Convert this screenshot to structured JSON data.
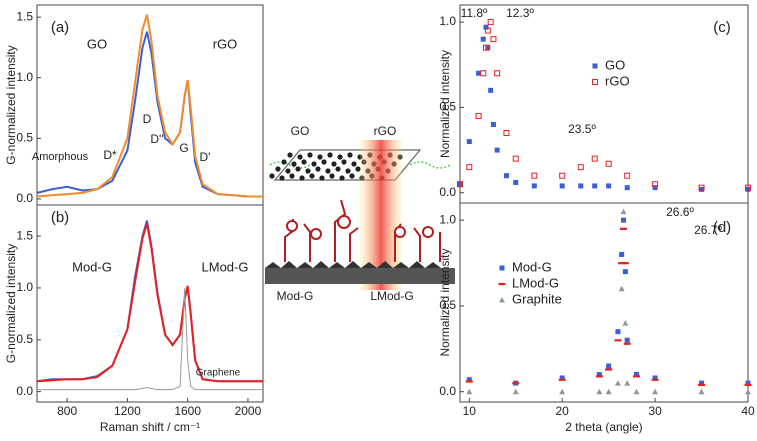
{
  "chart_data": [
    {
      "type": "line",
      "panel": "(a)",
      "x": [
        600,
        700,
        800,
        900,
        1000,
        1100,
        1200,
        1250,
        1300,
        1330,
        1360,
        1400,
        1450,
        1500,
        1550,
        1580,
        1600,
        1620,
        1650,
        1700,
        1800,
        1900,
        2000,
        2100
      ],
      "series": [
        {
          "name": "GO",
          "color": "#3a5fd6",
          "values": [
            0.05,
            0.08,
            0.1,
            0.07,
            0.08,
            0.15,
            0.4,
            0.8,
            1.25,
            1.38,
            1.2,
            0.8,
            0.5,
            0.45,
            0.55,
            0.85,
            0.98,
            0.7,
            0.3,
            0.1,
            0.04,
            0.03,
            0.02,
            0.02
          ]
        },
        {
          "name": "rGO",
          "color": "#f28c28",
          "values": [
            0.02,
            0.03,
            0.04,
            0.05,
            0.08,
            0.18,
            0.5,
            0.95,
            1.4,
            1.52,
            1.3,
            0.85,
            0.55,
            0.45,
            0.55,
            0.85,
            0.98,
            0.75,
            0.35,
            0.12,
            0.04,
            0.03,
            0.02,
            0.02
          ]
        }
      ],
      "annotations": [
        {
          "text": "D",
          "color": "#3a5fd6"
        },
        {
          "text": "D''",
          "color": "#3a5fd6"
        },
        {
          "text": "G",
          "color": "#3a5fd6"
        },
        {
          "text": "D*",
          "color": "#e8201f"
        },
        {
          "text": "D'",
          "color": "#e8201f"
        },
        {
          "text": "Amorphous",
          "color": "#e8201f"
        }
      ],
      "ylabel": "G-normalized intensity",
      "xlim": [
        600,
        2100
      ],
      "ylim": [
        -0.05,
        1.6
      ],
      "yticks": [
        {
          "value": 0,
          "label": "0.0"
        },
        {
          "value": 0.5,
          "label": "0.5"
        },
        {
          "value": 1,
          "label": "1.0"
        },
        {
          "value": 1.5,
          "label": "1.5"
        }
      ]
    },
    {
      "type": "line",
      "panel": "(b)",
      "x": [
        600,
        700,
        800,
        900,
        1000,
        1100,
        1200,
        1250,
        1300,
        1330,
        1360,
        1400,
        1450,
        1500,
        1550,
        1580,
        1600,
        1620,
        1650,
        1700,
        1800,
        1900,
        2000,
        2100
      ],
      "series": [
        {
          "name": "Mod-G",
          "color": "#3a5fd6",
          "values": [
            0.1,
            0.12,
            0.12,
            0.12,
            0.15,
            0.25,
            0.6,
            1.1,
            1.5,
            1.65,
            1.4,
            0.95,
            0.55,
            0.45,
            0.55,
            0.9,
            1.0,
            0.75,
            0.3,
            0.12,
            0.1,
            0.1,
            0.1,
            0.1
          ]
        },
        {
          "name": "LMod-G",
          "color": "#e8201f",
          "values": [
            0.1,
            0.11,
            0.12,
            0.12,
            0.14,
            0.25,
            0.6,
            1.05,
            1.48,
            1.62,
            1.38,
            0.93,
            0.55,
            0.45,
            0.55,
            0.9,
            1.02,
            0.75,
            0.3,
            0.12,
            0.1,
            0.1,
            0.1,
            0.1
          ]
        },
        {
          "name": "Graphene",
          "color": "#999999",
          "values": [
            0.02,
            0.02,
            0.02,
            0.02,
            0.02,
            0.02,
            0.02,
            0.02,
            0.03,
            0.04,
            0.03,
            0.02,
            0.02,
            0.02,
            0.05,
            1.0,
            0.3,
            0.05,
            0.02,
            0.02,
            0.02,
            0.02,
            0.02,
            0.02
          ]
        }
      ],
      "annotations": [],
      "xlabel": "Raman shift / cm⁻¹",
      "ylabel": "G-normalized intensity",
      "xlim": [
        600,
        2100
      ],
      "ylim": [
        -0.1,
        1.8
      ],
      "xticks": [
        800,
        1200,
        1600,
        2000
      ],
      "yticks": [
        {
          "value": 0,
          "label": "0.0"
        },
        {
          "value": 0.5,
          "label": "0.5"
        },
        {
          "value": 1,
          "label": "1.0"
        },
        {
          "value": 1.5,
          "label": "1.5"
        }
      ]
    },
    {
      "type": "scatter",
      "panel": "(c)",
      "x": [
        9,
        10,
        11,
        11.5,
        11.8,
        12,
        12.3,
        12.6,
        13,
        14,
        15,
        17,
        20,
        22,
        23.5,
        25,
        27,
        30,
        35,
        40
      ],
      "series": [
        {
          "name": "GO",
          "color": "#3a5fd6",
          "marker": "square",
          "values": [
            0.05,
            0.3,
            0.7,
            0.9,
            0.97,
            0.85,
            0.6,
            0.4,
            0.25,
            0.1,
            0.06,
            0.04,
            0.04,
            0.04,
            0.04,
            0.04,
            0.03,
            0.03,
            0.02,
            0.02
          ]
        },
        {
          "name": "rGO",
          "color": "#e8201f",
          "marker": "open-square",
          "values": [
            0.05,
            0.15,
            0.45,
            0.7,
            0.85,
            0.95,
            1.0,
            0.9,
            0.7,
            0.35,
            0.2,
            0.1,
            0.1,
            0.15,
            0.2,
            0.17,
            0.1,
            0.05,
            0.03,
            0.03
          ]
        }
      ],
      "annotations": [
        {
          "text": "11.8º",
          "color": "#3a5fd6"
        },
        {
          "text": "12.3º",
          "color": "#e8201f"
        },
        {
          "text": "23.5º",
          "color": "#e8201f"
        }
      ],
      "ylabel": "Normalized intensity",
      "xlim": [
        9,
        40
      ],
      "ylim": [
        -0.06,
        1.1
      ],
      "yticks": [
        {
          "value": 0,
          "label": "0.0"
        },
        {
          "value": 0.5,
          "label": "0.5"
        },
        {
          "value": 1,
          "label": "1.0"
        }
      ]
    },
    {
      "type": "scatter",
      "panel": "(d)",
      "x": [
        10,
        15,
        20,
        24,
        25,
        26,
        26.4,
        26.6,
        26.8,
        27,
        28,
        30,
        35,
        40
      ],
      "series": [
        {
          "name": "Mod-G",
          "color": "#3a5fd6",
          "marker": "square",
          "values": [
            0.07,
            0.05,
            0.08,
            0.1,
            0.15,
            0.35,
            0.8,
            1.0,
            0.7,
            0.3,
            0.1,
            0.08,
            0.05,
            0.05
          ]
        },
        {
          "name": "LMod-G",
          "color": "#e8201f",
          "marker": "dash",
          "values": [
            0.06,
            0.05,
            0.07,
            0.09,
            0.13,
            0.3,
            0.75,
            0.95,
            0.75,
            0.28,
            0.09,
            0.07,
            0.04,
            0.04
          ]
        },
        {
          "name": "Graphite",
          "color": "#8a9a9a",
          "marker": "triangle",
          "values": [
            0,
            0,
            0,
            0,
            0,
            0.05,
            0.6,
            1.05,
            0.4,
            0.05,
            0,
            0,
            0,
            0
          ]
        }
      ],
      "annotations": [
        {
          "text": "26.6º",
          "color": "#222222"
        },
        {
          "text": "26.7º",
          "color": "#8a9a9a"
        }
      ],
      "xlabel": "2 theta (angle)",
      "ylabel": "Normalized intensity",
      "xlim": [
        9,
        40
      ],
      "ylim": [
        -0.06,
        1.1
      ],
      "xticks": [
        10,
        20,
        30,
        40
      ],
      "yticks": [
        {
          "value": 0,
          "label": "0.0"
        },
        {
          "value": 0.5,
          "label": "0.5"
        },
        {
          "value": 1,
          "label": "1.0"
        }
      ]
    }
  ],
  "diagram": {
    "labels": [
      "GO",
      "rGO",
      "Mod-G",
      "LMod-G"
    ]
  }
}
